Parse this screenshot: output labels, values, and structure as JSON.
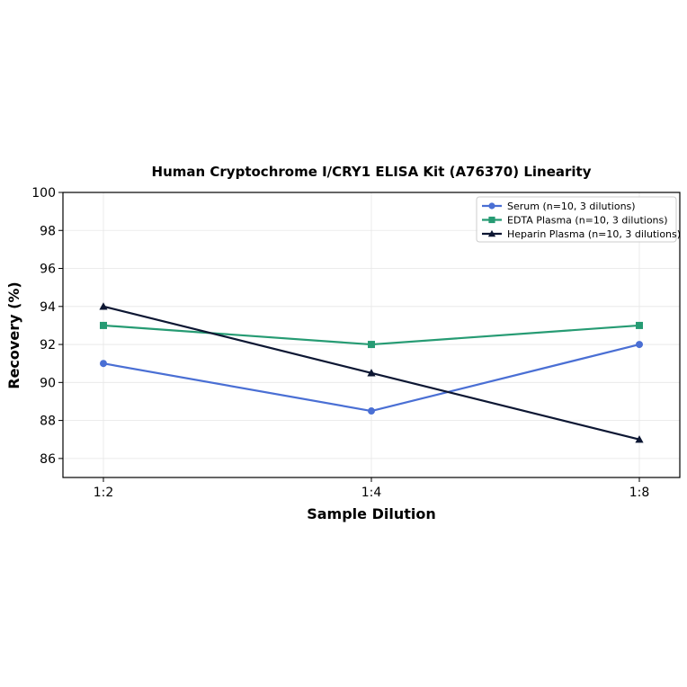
{
  "chart_data": {
    "type": "line",
    "title": "Human Cryptochrome I/CRY1 ELISA Kit (A76370) Linearity",
    "xlabel": "Sample Dilution",
    "ylabel": "Recovery (%)",
    "categories": [
      "1:2",
      "1:4",
      "1:8"
    ],
    "ylim": [
      85,
      100
    ],
    "yticks": [
      86,
      88,
      90,
      92,
      94,
      96,
      98,
      100
    ],
    "grid": true,
    "legend_position": "top-right",
    "series": [
      {
        "name": "Serum (n=10, 3 dilutions)",
        "values": [
          91,
          88.5,
          92
        ],
        "color": "#4a6fd4",
        "marker": "circle"
      },
      {
        "name": "EDTA Plasma (n=10, 3 dilutions)",
        "values": [
          93,
          92,
          93
        ],
        "color": "#269b73",
        "marker": "square"
      },
      {
        "name": "Heparin Plasma (n=10, 3 dilutions)",
        "values": [
          94,
          90.5,
          87
        ],
        "color": "#0d1733",
        "marker": "triangle"
      }
    ]
  }
}
